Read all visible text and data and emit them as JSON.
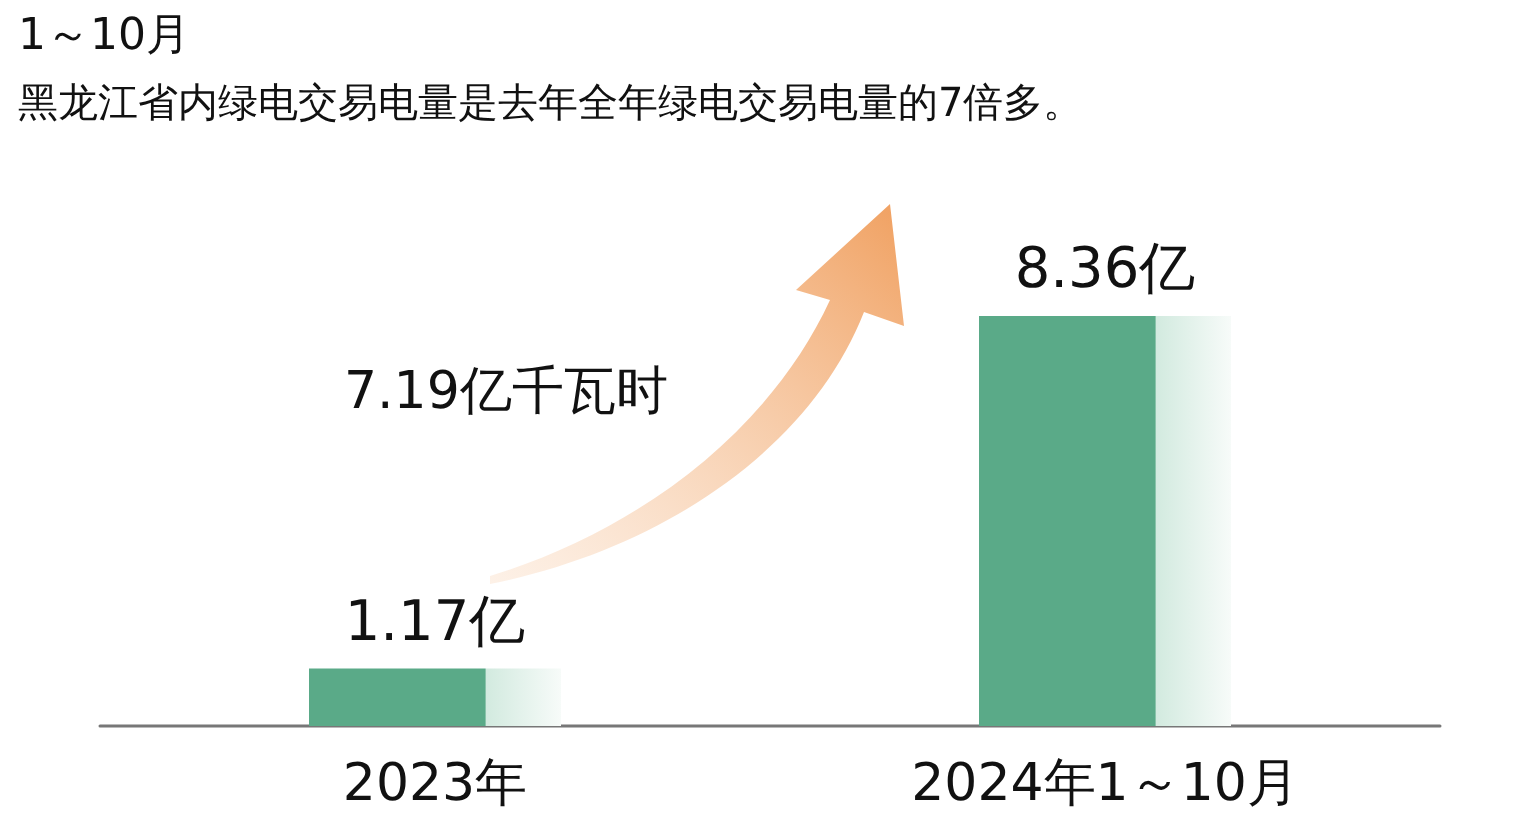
{
  "chart_data": {
    "type": "bar",
    "title": "1～10月",
    "subtitle": "黑龙江省内绿电交易电量是去年全年绿电交易电量的7倍多。",
    "categories": [
      "2023年",
      "2024年1～10月"
    ],
    "values": [
      1.17,
      8.36
    ],
    "value_labels": [
      "1.17亿",
      "8.36亿"
    ],
    "color": "#5aaa88",
    "annotations": [
      "7.19亿千瓦时"
    ]
  }
}
